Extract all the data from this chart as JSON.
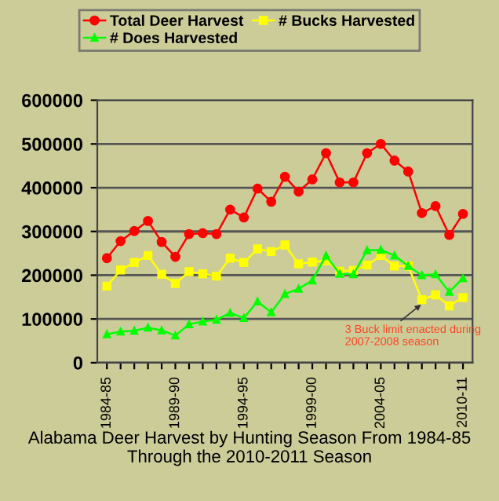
{
  "chart_data": {
    "type": "line",
    "title": "Alabama Deer Harvest by Hunting Season From 1984-85\nThrough the 2010-2011 Season",
    "categories": [
      "1984-85",
      null,
      null,
      null,
      null,
      "1989-90",
      null,
      null,
      null,
      null,
      "1994-95",
      null,
      null,
      null,
      null,
      "1999-00",
      null,
      null,
      null,
      null,
      "2004-05",
      null,
      null,
      null,
      null,
      null,
      "2010-11"
    ],
    "series": [
      {
        "name": "Total Deer Harvest",
        "color": "#ff0000",
        "marker": "circle",
        "values": [
          239000,
          278000,
          301000,
          324000,
          276000,
          242000,
          294000,
          296000,
          294000,
          350000,
          332000,
          398000,
          368000,
          425000,
          391000,
          419000,
          479000,
          412000,
          412000,
          479000,
          500000,
          462000,
          437000,
          342000,
          358000,
          292000,
          340000
        ]
      },
      {
        "name": "# Bucks Harvested",
        "color": "#ffff00",
        "marker": "square",
        "values": [
          175000,
          212000,
          229000,
          245000,
          202000,
          181000,
          208000,
          203000,
          198000,
          239000,
          229000,
          260000,
          254000,
          269000,
          226000,
          230000,
          233000,
          209000,
          211000,
          223000,
          245000,
          221000,
          221000,
          144000,
          155000,
          130000,
          149000
        ]
      },
      {
        "name": "# Does Harvested",
        "color": "#00ff00",
        "marker": "triangle",
        "values": [
          65000,
          71000,
          73000,
          80000,
          74000,
          62000,
          88000,
          94000,
          98000,
          114000,
          102000,
          140000,
          115000,
          157000,
          169000,
          188000,
          245000,
          203000,
          202000,
          257000,
          258000,
          245000,
          221000,
          200000,
          202000,
          162000,
          193000
        ]
      }
    ],
    "ylim": [
      0,
      600000
    ],
    "yticks": [
      0,
      100000,
      200000,
      300000,
      400000,
      500000,
      600000
    ],
    "grid": "y",
    "legend": "top",
    "annotations": [
      "3 Buck limit enacted during 2007-2008 season"
    ]
  }
}
